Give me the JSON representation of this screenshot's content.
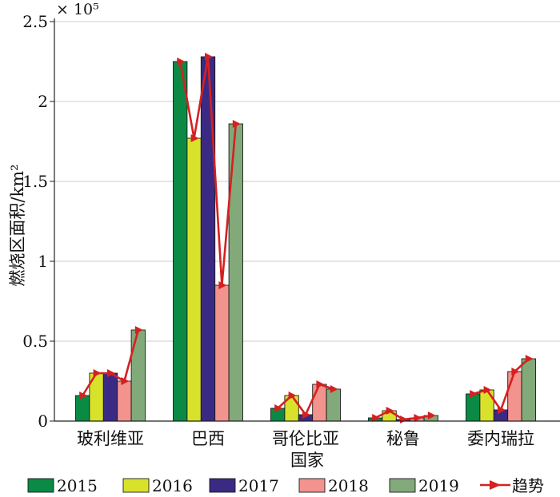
{
  "chart_data": {
    "type": "bar",
    "title": "",
    "xlabel": "国家",
    "ylabel": "燃烧区面积/km²",
    "y_multiplier_label": "× 10⁵",
    "ylim": [
      0,
      2.5
    ],
    "yticks": [
      0,
      0.5,
      1,
      1.5,
      2,
      2.5
    ],
    "ytick_labels": [
      "0",
      "0.5",
      "1",
      "1.5",
      "2",
      "2.5"
    ],
    "grid": "horizontal",
    "legend_position": "bottom",
    "categories": [
      "玻利维亚",
      "巴西",
      "哥伦比亚",
      "秘鲁",
      "委内瑞拉"
    ],
    "series": [
      {
        "name": "2015",
        "color": "#0a8a45",
        "values": [
          0.16,
          2.25,
          0.08,
          0.02,
          0.17
        ]
      },
      {
        "name": "2016",
        "color": "#d9e22a",
        "values": [
          0.3,
          1.77,
          0.16,
          0.065,
          0.195
        ]
      },
      {
        "name": "2017",
        "color": "#3b2a83",
        "values": [
          0.3,
          2.28,
          0.04,
          0.01,
          0.07
        ]
      },
      {
        "name": "2018",
        "color": "#f2938e",
        "values": [
          0.25,
          0.85,
          0.23,
          0.02,
          0.31
        ]
      },
      {
        "name": "2019",
        "color": "#82a97a",
        "values": [
          0.57,
          1.86,
          0.2,
          0.035,
          0.39
        ]
      }
    ],
    "trend": {
      "name": "趋势",
      "color": "#d62020"
    }
  }
}
